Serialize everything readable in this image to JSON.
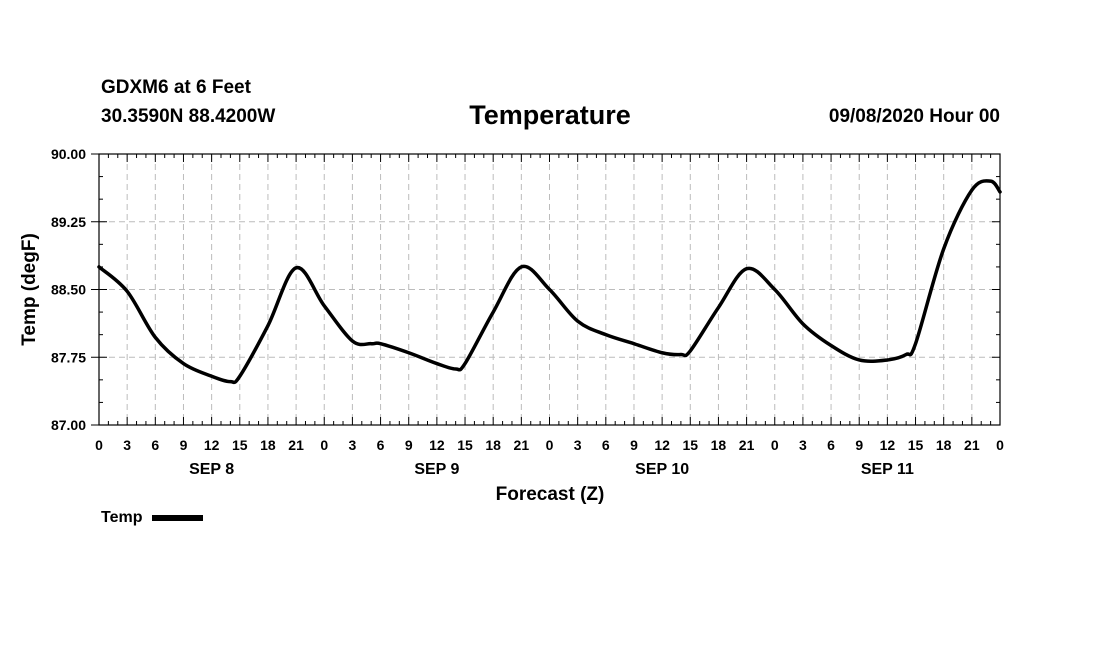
{
  "header": {
    "station": "GDXM6 at 6 Feet",
    "coords": "30.3590N 88.4200W",
    "title": "Temperature",
    "date": "09/08/2020 Hour 00"
  },
  "chart_data": {
    "type": "line",
    "title": "Temperature",
    "xlabel": "Forecast (Z)",
    "ylabel": "Temp (degF)",
    "ylim": [
      87.0,
      90.0
    ],
    "yticks": [
      "87.00",
      "87.75",
      "88.50",
      "89.25",
      "90.00"
    ],
    "xlim_hours": [
      0,
      96
    ],
    "xtick_labels": [
      "0",
      "3",
      "6",
      "9",
      "12",
      "15",
      "18",
      "21",
      "0",
      "3",
      "6",
      "9",
      "12",
      "15",
      "18",
      "21",
      "0",
      "3",
      "6",
      "9",
      "12",
      "15",
      "18",
      "21",
      "0",
      "3",
      "6",
      "9",
      "12",
      "15",
      "18",
      "21",
      "0"
    ],
    "day_labels": [
      {
        "label": "SEP 8",
        "hour": 12
      },
      {
        "label": "SEP 9",
        "hour": 36
      },
      {
        "label": "SEP 10",
        "hour": 60
      },
      {
        "label": "SEP 11",
        "hour": 84
      }
    ],
    "grid": true,
    "series": [
      {
        "name": "Temp",
        "color": "#000000",
        "x": [
          0,
          3,
          6,
          9,
          12,
          14,
          15,
          18,
          21,
          24,
          27,
          29,
          30,
          33,
          36,
          38,
          39,
          42,
          45,
          48,
          51,
          54,
          57,
          60,
          62,
          63,
          66,
          69,
          72,
          75,
          78,
          81,
          84,
          86,
          87,
          90,
          93,
          95,
          96
        ],
        "y": [
          88.75,
          88.48,
          87.97,
          87.68,
          87.54,
          87.48,
          87.54,
          88.1,
          88.74,
          88.32,
          87.93,
          87.9,
          87.9,
          87.8,
          87.68,
          87.62,
          87.68,
          88.25,
          88.75,
          88.5,
          88.15,
          88.0,
          87.9,
          87.8,
          87.78,
          87.82,
          88.3,
          88.73,
          88.5,
          88.12,
          87.88,
          87.72,
          87.72,
          87.78,
          87.9,
          88.95,
          89.6,
          89.7,
          89.58
        ]
      }
    ],
    "legend": {
      "label": "Temp",
      "position": "bottom-left"
    }
  }
}
